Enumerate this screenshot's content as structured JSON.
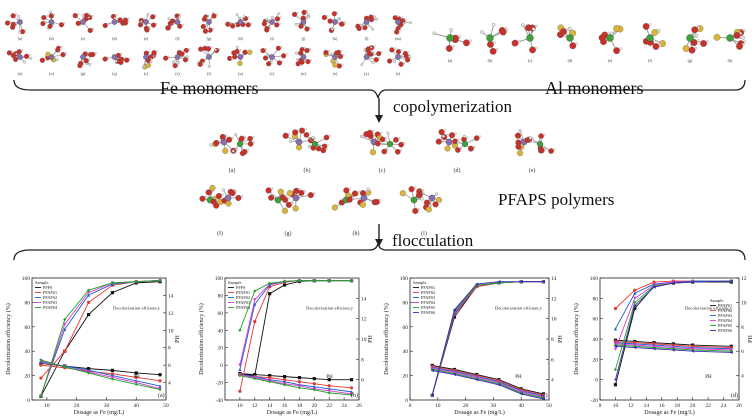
{
  "labels": {
    "fe_monomers": "Fe monomers",
    "al_monomers": "Al monomers",
    "copolymerization": "copolymerization",
    "pfaps_polymers": "PFAPS polymers",
    "flocculation": "flocculation"
  },
  "fe_row1_letters": [
    "(a)",
    "(b)",
    "(c)",
    "(d)",
    "(e)",
    "(f)",
    "(g)",
    "(h)",
    "(i)",
    "(j)",
    "(k)",
    "(l)",
    "(m)"
  ],
  "fe_row2_letters": [
    "(n)",
    "(o)",
    "(p)",
    "(q)",
    "(r)",
    "(s)",
    "(t)",
    "(u)",
    "(v)",
    "(w)",
    "(x)",
    "(y)",
    "(z)"
  ],
  "al_letters": [
    "(a)",
    "(b)",
    "(c)",
    "(d)",
    "(e)",
    "(f)",
    "(g)",
    "(h)"
  ],
  "polymer_row1_letters": [
    "(a)",
    "(b)",
    "(c)",
    "(d)",
    "(e)"
  ],
  "polymer_row2_letters": [
    "(f)",
    "(g)",
    "(h)",
    "(i)"
  ],
  "colors": {
    "oxygen": "#c8312a",
    "iron": "#8a6fb0",
    "aluminum": "#3da23a",
    "sulfur": "#d9b43a",
    "hydrogen": "#e8e8e8",
    "arrow": "#222222"
  },
  "chart_data": [
    {
      "type": "line",
      "panel_tag": "(a)",
      "xlabel": "Dosage as Fe (mg/L)",
      "ylabel_left": "Decolorization efficiency (%)",
      "ylabel_right": "PH",
      "xlim": [
        5,
        50
      ],
      "ylim": [
        0,
        100
      ],
      "y2lim": [
        2,
        16
      ],
      "x_ticks": [
        "10",
        "20",
        "30",
        "40",
        "50"
      ],
      "y_ticks": [
        "0",
        "20",
        "40",
        "60",
        "80",
        "100"
      ],
      "y2_ticks": [
        "4",
        "6",
        "8",
        "10",
        "12",
        "14"
      ],
      "legend_title": "Sample",
      "annotations": [
        "Decolorization efficiency",
        "PH"
      ],
      "x": [
        8,
        16,
        24,
        32,
        40,
        48
      ],
      "series": [
        {
          "name": "PFPS",
          "color": "#111111",
          "values": [
            3,
            40,
            70,
            88,
            96,
            97
          ],
          "ph": [
            6.2,
            5.9,
            5.6,
            5.4,
            5.1,
            4.9
          ]
        },
        {
          "name": "PFAPS1",
          "color": "#e53935",
          "values": [
            18,
            40,
            80,
            94,
            97,
            98
          ],
          "ph": [
            6.0,
            5.7,
            5.3,
            5.0,
            4.6,
            4.2
          ]
        },
        {
          "name": "PFAPS2",
          "color": "#1e5bd6",
          "values": [
            4,
            58,
            86,
            95,
            97,
            98
          ],
          "ph": [
            6.4,
            5.9,
            5.4,
            4.8,
            4.2,
            3.6
          ]
        },
        {
          "name": "PFAPS3",
          "color": "#d63ad6",
          "values": [
            3,
            62,
            88,
            96,
            97,
            98
          ],
          "ph": [
            6.5,
            5.8,
            5.2,
            4.6,
            4.0,
            3.3
          ]
        },
        {
          "name": "PFAPS4",
          "color": "#21a321",
          "values": [
            3,
            66,
            90,
            96,
            97,
            98
          ],
          "ph": [
            6.6,
            5.8,
            5.1,
            4.4,
            3.8,
            3.2
          ]
        }
      ]
    },
    {
      "type": "line",
      "panel_tag": "(b)",
      "xlabel": "Dosage as Fe (mg/L)",
      "ylabel_left": "Decolorization efficiency (%)",
      "ylabel_right": "PH",
      "xlim": [
        8,
        26
      ],
      "ylim": [
        -40,
        100
      ],
      "y2lim": [
        4,
        16
      ],
      "x_ticks": [
        "10",
        "12",
        "14",
        "16",
        "18",
        "20",
        "22",
        "24",
        "26"
      ],
      "y_ticks": [
        "-40",
        "-20",
        "0",
        "20",
        "40",
        "60",
        "80",
        "100"
      ],
      "y2_ticks": [
        "6",
        "8",
        "10",
        "12",
        "14"
      ],
      "legend_title": "Sample",
      "annotations": [
        "Decolorization efficiency",
        "PH"
      ],
      "x": [
        10,
        12,
        14,
        16,
        18,
        20,
        22,
        25
      ],
      "series": [
        {
          "name": "PFPS",
          "color": "#111111",
          "values": [
            -10,
            -12,
            82,
            92,
            96,
            97,
            97,
            97
          ],
          "ph": [
            6.6,
            6.5,
            6.4,
            6.3,
            6.2,
            6.1,
            6.0,
            6.0
          ]
        },
        {
          "name": "PFAPS1",
          "color": "#e53935",
          "values": [
            -30,
            50,
            90,
            95,
            97,
            97,
            97,
            97
          ],
          "ph": [
            6.5,
            6.3,
            6.2,
            6.0,
            5.8,
            5.6,
            5.4,
            5.2
          ]
        },
        {
          "name": "PFAPS2",
          "color": "#1e5bd6",
          "values": [
            -5,
            70,
            92,
            96,
            97,
            97,
            97,
            97
          ],
          "ph": [
            6.5,
            6.3,
            6.0,
            5.8,
            5.5,
            5.3,
            5.1,
            4.8
          ]
        },
        {
          "name": "PFAPS3",
          "color": "#d63ad6",
          "values": [
            0,
            75,
            93,
            96,
            97,
            97,
            97,
            97
          ],
          "ph": [
            6.5,
            6.2,
            5.9,
            5.6,
            5.4,
            5.1,
            4.9,
            4.6
          ]
        },
        {
          "name": "PFAPS4",
          "color": "#21a321",
          "values": [
            40,
            85,
            94,
            96,
            97,
            97,
            97,
            97
          ],
          "ph": [
            6.4,
            6.1,
            5.8,
            5.5,
            5.2,
            5.0,
            4.7,
            4.5
          ]
        }
      ]
    },
    {
      "type": "line",
      "panel_tag": "(c)",
      "xlabel": "Dosage as Fe (mg/L)",
      "ylabel_left": "Decolorization efficiency (%)",
      "ylabel_right": "PH",
      "xlim": [
        0,
        50
      ],
      "ylim": [
        0,
        100
      ],
      "y2lim": [
        2,
        14
      ],
      "x_ticks": [
        "0",
        "10",
        "20",
        "30",
        "40",
        "50"
      ],
      "y_ticks": [
        "0",
        "20",
        "40",
        "60",
        "80",
        "100"
      ],
      "y2_ticks": [
        "4",
        "6",
        "8",
        "10",
        "12",
        "14"
      ],
      "legend_title": "Sample",
      "annotations": [
        "Decolorization efficiency",
        "PH"
      ],
      "x": [
        8,
        16,
        24,
        32,
        40,
        48
      ],
      "series": [
        {
          "name": "PFAPS1",
          "color": "#111111",
          "values": [
            4,
            68,
            93,
            96,
            97,
            97
          ],
          "ph": [
            5.4,
            5.0,
            4.5,
            4.0,
            3.1,
            2.6
          ]
        },
        {
          "name": "PFAPS2",
          "color": "#e53935",
          "values": [
            4,
            70,
            93,
            96,
            97,
            97
          ],
          "ph": [
            5.3,
            4.9,
            4.4,
            3.9,
            3.0,
            2.5
          ]
        },
        {
          "name": "PFAPS3",
          "color": "#1e5bd6",
          "values": [
            4,
            71,
            94,
            96,
            97,
            97
          ],
          "ph": [
            5.2,
            4.8,
            4.3,
            3.8,
            2.9,
            2.4
          ]
        },
        {
          "name": "PFAPS4",
          "color": "#d63ad6",
          "values": [
            4,
            72,
            94,
            96,
            97,
            97
          ],
          "ph": [
            5.1,
            4.7,
            4.2,
            3.7,
            2.8,
            2.3
          ]
        },
        {
          "name": "PFAPS5",
          "color": "#21a321",
          "values": [
            4,
            73,
            94,
            96,
            97,
            97
          ],
          "ph": [
            5.0,
            4.6,
            4.1,
            3.6,
            2.7,
            2.2
          ]
        },
        {
          "name": "PFAPS6",
          "color": "#3a2bb0",
          "values": [
            4,
            74,
            95,
            97,
            97,
            97
          ],
          "ph": [
            4.9,
            4.5,
            4.0,
            3.5,
            2.6,
            2.1
          ]
        }
      ]
    },
    {
      "type": "line",
      "panel_tag": "(d)",
      "xlabel": "Dosage as Fe (mg/L)",
      "ylabel_left": "Decolorization efficiency (%)",
      "ylabel_right": "PH",
      "xlim": [
        8,
        26
      ],
      "ylim": [
        -20,
        100
      ],
      "y2lim": [
        2,
        12
      ],
      "x_ticks": [
        "8",
        "10",
        "12",
        "14",
        "16",
        "18",
        "20",
        "22",
        "24",
        "26"
      ],
      "y_ticks": [
        "-20",
        "0",
        "20",
        "40",
        "60",
        "80",
        "100"
      ],
      "y2_ticks": [
        "4",
        "6",
        "8",
        "10",
        "12"
      ],
      "legend_title": "Sample",
      "annotations": [
        "Decolorization efficiency",
        "PH"
      ],
      "x": [
        10,
        12.5,
        15,
        17.5,
        20,
        25
      ],
      "series": [
        {
          "name": "PFAPS1",
          "color": "#111111",
          "values": [
            -5,
            70,
            92,
            95,
            96,
            96
          ],
          "ph": [
            6.9,
            6.8,
            6.7,
            6.6,
            6.5,
            6.4
          ]
        },
        {
          "name": "PFAPS2",
          "color": "#e53935",
          "values": [
            70,
            88,
            96,
            97,
            97,
            97
          ],
          "ph": [
            6.8,
            6.7,
            6.6,
            6.5,
            6.4,
            6.3
          ]
        },
        {
          "name": "PFAPS3",
          "color": "#1e5bd6",
          "values": [
            50,
            85,
            94,
            96,
            97,
            97
          ],
          "ph": [
            6.7,
            6.6,
            6.5,
            6.4,
            6.3,
            6.2
          ]
        },
        {
          "name": "PFAPS4",
          "color": "#d63ad6",
          "values": [
            30,
            80,
            93,
            96,
            96,
            97
          ],
          "ph": [
            6.6,
            6.5,
            6.4,
            6.3,
            6.2,
            6.1
          ]
        },
        {
          "name": "PFAPS5",
          "color": "#21a321",
          "values": [
            10,
            76,
            92,
            95,
            96,
            97
          ],
          "ph": [
            6.5,
            6.4,
            6.3,
            6.2,
            6.1,
            6.0
          ]
        },
        {
          "name": "PFAPS6",
          "color": "#3a2bb0",
          "values": [
            0,
            73,
            91,
            95,
            96,
            97
          ],
          "ph": [
            6.4,
            6.3,
            6.2,
            6.1,
            6.0,
            5.9
          ]
        }
      ]
    }
  ]
}
